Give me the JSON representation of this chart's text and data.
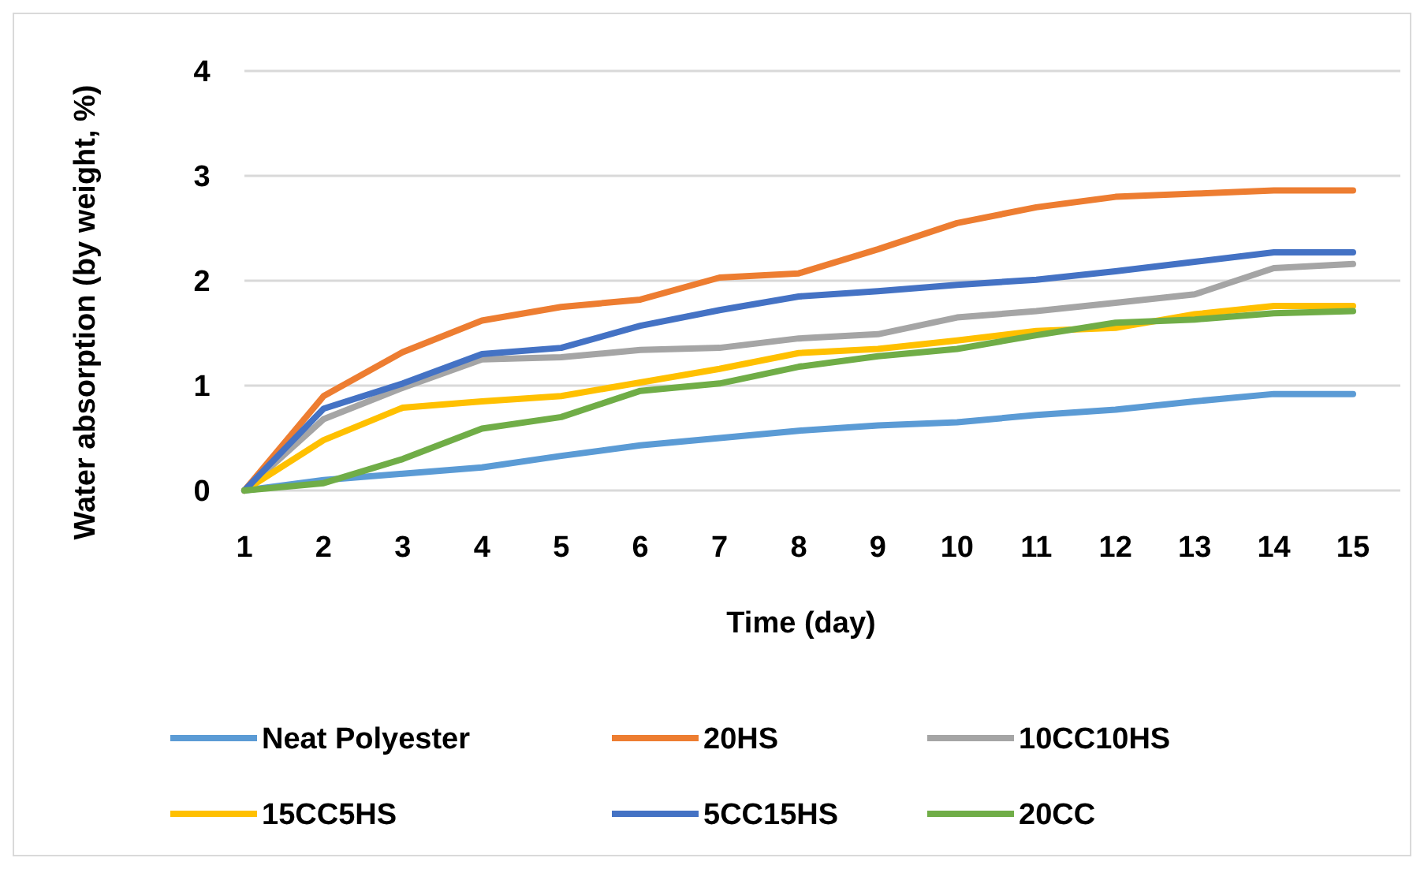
{
  "chart_data": {
    "type": "line",
    "xlabel": "Time (day)",
    "ylabel": "Water absorption (by weight, %)",
    "categories": [
      "1",
      "2",
      "3",
      "4",
      "5",
      "6",
      "7",
      "8",
      "9",
      "10",
      "11",
      "12",
      "13",
      "14",
      "15"
    ],
    "ylim": [
      0,
      4
    ],
    "yticks": [
      0,
      1,
      2,
      3,
      4
    ],
    "grid": "y",
    "legend": "bottom",
    "marker": "none",
    "line_style": "solid",
    "series": [
      {
        "name": "Neat Polyester",
        "color": "#5b9bd5",
        "values": [
          0,
          0.1,
          0.16,
          0.22,
          0.33,
          0.43,
          0.5,
          0.57,
          0.62,
          0.65,
          0.72,
          0.77,
          0.85,
          0.92,
          0.92
        ]
      },
      {
        "name": "20HS",
        "color": "#ed7d31",
        "values": [
          0,
          0.9,
          1.32,
          1.62,
          1.75,
          1.82,
          2.03,
          2.07,
          2.3,
          2.55,
          2.7,
          2.8,
          2.83,
          2.86,
          2.86
        ]
      },
      {
        "name": "10CC10HS",
        "color": "#a5a5a5",
        "values": [
          0,
          0.68,
          0.98,
          1.25,
          1.27,
          1.34,
          1.36,
          1.45,
          1.49,
          1.65,
          1.71,
          1.79,
          1.87,
          2.12,
          2.16
        ]
      },
      {
        "name": "15CC5HS",
        "color": "#ffc000",
        "values": [
          0,
          0.48,
          0.79,
          0.85,
          0.9,
          1.03,
          1.16,
          1.31,
          1.35,
          1.43,
          1.52,
          1.55,
          1.68,
          1.76,
          1.76
        ]
      },
      {
        "name": "5CC15HS",
        "color": "#4472c4",
        "values": [
          0,
          0.78,
          1.02,
          1.3,
          1.36,
          1.57,
          1.72,
          1.85,
          1.9,
          1.96,
          2.01,
          2.09,
          2.18,
          2.27,
          2.27
        ]
      },
      {
        "name": "20CC",
        "color": "#70ad47",
        "values": [
          0,
          0.07,
          0.3,
          0.59,
          0.7,
          0.95,
          1.02,
          1.18,
          1.28,
          1.35,
          1.48,
          1.6,
          1.63,
          1.69,
          1.71
        ]
      }
    ]
  }
}
